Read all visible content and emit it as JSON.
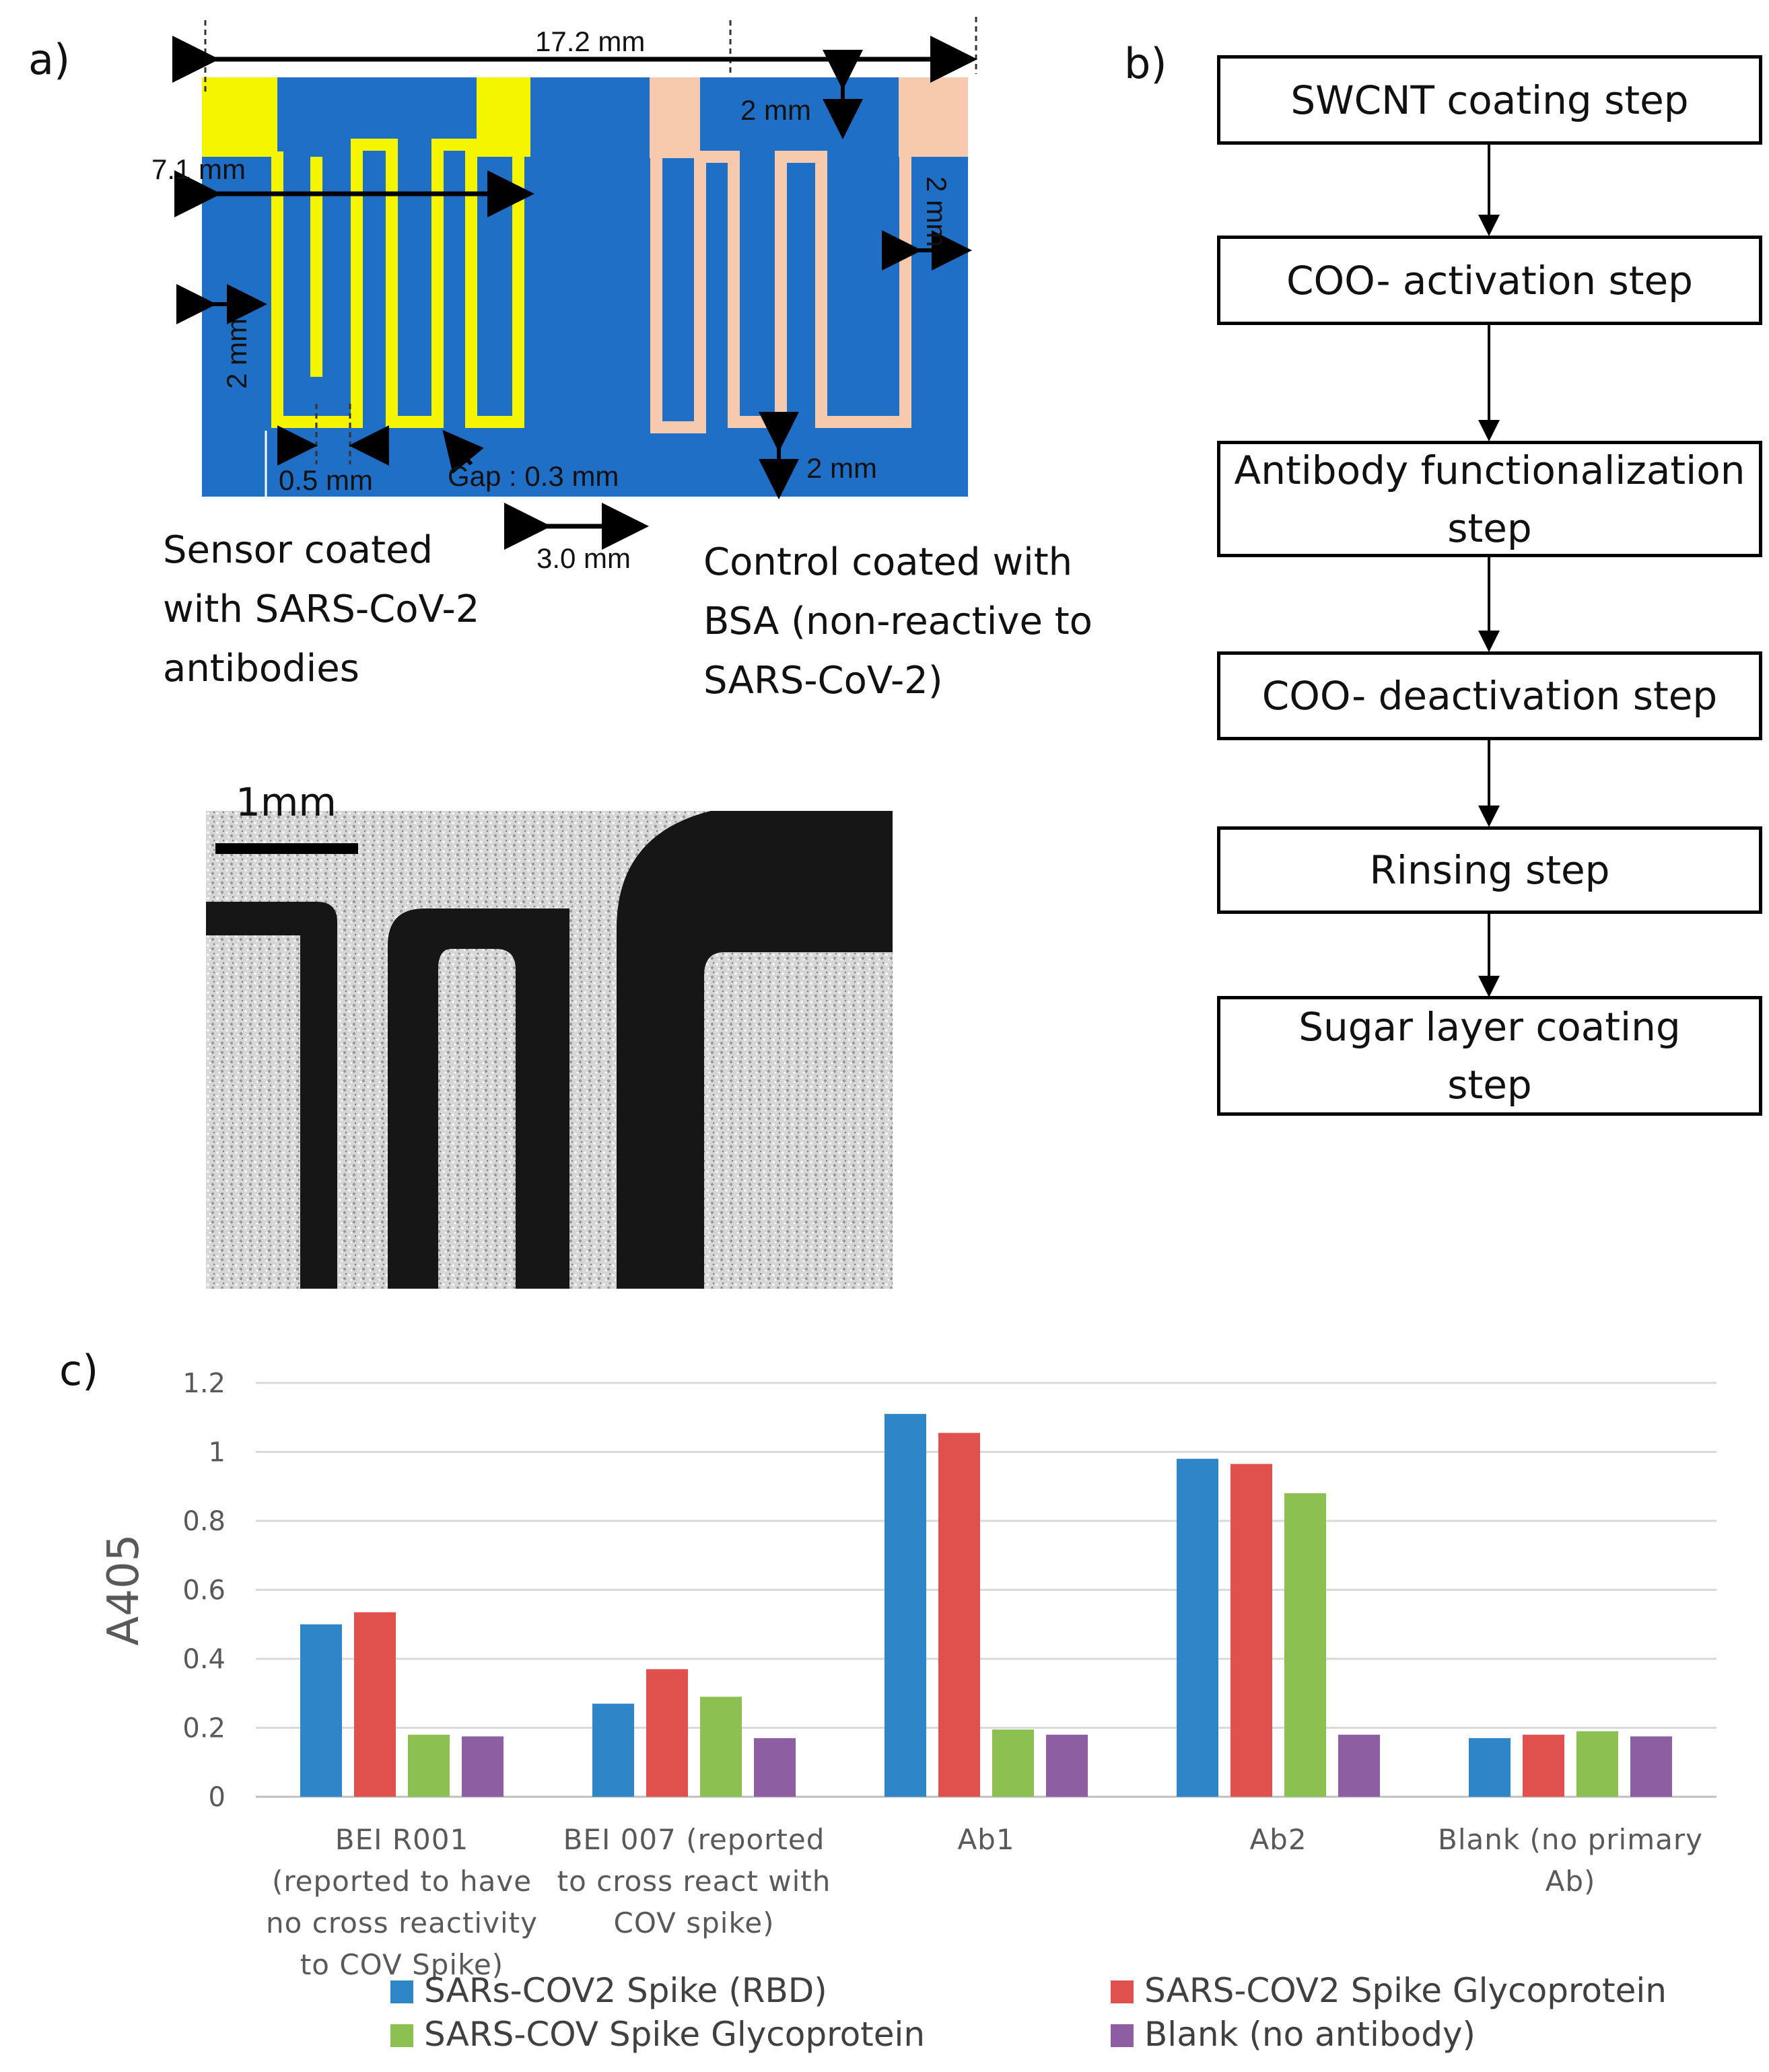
{
  "panel_a": {
    "label": "a)",
    "dims": {
      "width_total": "17.2 mm",
      "height_total": "7.1 mm",
      "top_pad": "2 mm",
      "right_pad": "2 mm",
      "left_pad": "2 mm",
      "finger_width": "0.5 mm",
      "gap": "Gap : 0.3 mm",
      "bottom_pad": "2 mm",
      "separation": "3.0 mm"
    },
    "sensor_caption": [
      "Sensor coated",
      "with SARS-CoV-2",
      "antibodies"
    ],
    "control_caption": [
      "Control coated with",
      "BSA (non-reactive to",
      "SARS-CoV-2)"
    ],
    "scale_bar": "1mm",
    "colors": {
      "substrate": "#1f6fc6",
      "sensor": "#f5f500",
      "control": "#f7c9ad"
    }
  },
  "panel_b": {
    "label": "b)",
    "steps": [
      "SWCNT coating step",
      "COO- activation step",
      "Antibody functionalization step",
      "COO- deactivation step",
      "Rinsing step",
      "Sugar layer coating step"
    ]
  },
  "panel_c": {
    "label": "c)"
  },
  "chart_data": {
    "type": "bar",
    "title": "",
    "xlabel": "",
    "ylabel": "A405",
    "ylim": [
      0,
      1.2
    ],
    "yticks": [
      "0",
      "0.2",
      "0.4",
      "0.6",
      "0.8",
      "1",
      "1.2"
    ],
    "categories": [
      "BEI R001 (reported to have no cross reactivity to COV Spike)",
      "BEI 007 (reported to cross react with COV spike)",
      "Ab1",
      "Ab2",
      "Blank (no primary Ab)"
    ],
    "category_lines": [
      [
        "BEI R001",
        "(reported to have",
        "no cross reactivity",
        "to COV Spike)"
      ],
      [
        "BEI 007 (reported",
        "to cross react with",
        "COV spike)"
      ],
      [
        "Ab1"
      ],
      [
        "Ab2"
      ],
      [
        "Blank (no primary",
        "Ab)"
      ]
    ],
    "series": [
      {
        "name": "SARs-COV2 Spike (RBD)",
        "color": "#2e86c8",
        "values": [
          0.5,
          0.27,
          1.11,
          0.98,
          0.17
        ]
      },
      {
        "name": "SARS-COV2 Spike Glycoprotein",
        "color": "#e0504c",
        "values": [
          0.535,
          0.37,
          1.055,
          0.965,
          0.18
        ]
      },
      {
        "name": "SARS-COV Spike Glycoprotein",
        "color": "#8cc152",
        "values": [
          0.18,
          0.29,
          0.195,
          0.88,
          0.19
        ]
      },
      {
        "name": "Blank (no antibody)",
        "color": "#8e5ea2",
        "values": [
          0.175,
          0.17,
          0.18,
          0.18,
          0.175
        ]
      }
    ],
    "legend_position": "bottom"
  }
}
